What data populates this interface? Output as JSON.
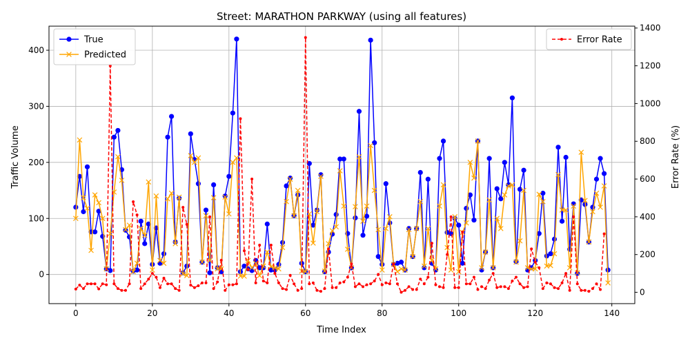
{
  "chart_data": {
    "type": "line",
    "title": "Street: MARATHON PARKWAY (using all features)",
    "xlabel": "Time Index",
    "ylabel": "Traffic Volume",
    "ylabel_right": "Error Rate (%)",
    "xlim": [
      -7,
      146
    ],
    "ylim": [
      -52,
      443
    ],
    "ylim_right": [
      -60,
      1410
    ],
    "x_ticks": [
      0,
      20,
      40,
      60,
      80,
      100,
      120,
      140
    ],
    "y_ticks": [
      0,
      100,
      200,
      300,
      400
    ],
    "y_ticks_right": [
      0,
      200,
      400,
      600,
      800,
      1000,
      1200,
      1400
    ],
    "grid": true,
    "legend_left_position": "top-left",
    "legend_right_position": "top-right",
    "series": [
      {
        "name": "True",
        "axis": "left",
        "color": "#0000ff",
        "marker": "circle",
        "linestyle": "solid",
        "values": [
          120,
          175,
          112,
          192,
          76,
          76,
          113,
          68,
          10,
          7,
          245,
          257,
          187,
          79,
          67,
          6,
          8,
          95,
          55,
          90,
          18,
          83,
          20,
          37,
          245,
          282,
          58,
          136,
          3,
          15,
          251,
          205,
          162,
          22,
          115,
          3,
          160,
          12,
          5,
          140,
          175,
          288,
          420,
          5,
          15,
          10,
          7,
          25,
          12,
          12,
          90,
          8,
          8,
          18,
          57,
          158,
          172,
          105,
          142,
          20,
          5,
          198,
          88,
          115,
          178,
          5,
          40,
          72,
          107,
          206,
          206,
          73,
          12,
          101,
          291,
          70,
          104,
          418,
          235,
          32,
          18,
          162,
          92,
          18,
          20,
          22,
          8,
          82,
          32,
          82,
          182,
          12,
          170,
          20,
          8,
          207,
          238,
          75,
          73,
          100,
          88,
          20,
          118,
          142,
          97,
          238,
          8,
          40,
          207,
          12,
          153,
          135,
          200,
          160,
          315,
          23,
          152,
          186,
          8,
          12,
          25,
          73,
          145,
          33,
          37,
          63,
          227,
          95,
          209,
          45,
          126,
          2,
          133,
          125,
          58,
          120,
          170,
          207,
          180,
          8
        ]
      },
      {
        "name": "Predicted",
        "axis": "left",
        "color": "#ffa500",
        "marker": "x",
        "linestyle": "solid",
        "values": [
          100,
          240,
          137,
          118,
          43,
          142,
          128,
          100,
          10,
          73,
          147,
          210,
          168,
          80,
          88,
          5,
          20,
          82,
          70,
          165,
          8,
          140,
          25,
          20,
          135,
          145,
          55,
          138,
          1,
          -2,
          212,
          200,
          208,
          22,
          105,
          25,
          137,
          10,
          10,
          138,
          108,
          200,
          208,
          -3,
          -3,
          25,
          12,
          20,
          -2,
          15,
          40,
          14,
          12,
          10,
          48,
          130,
          170,
          105,
          150,
          6,
          5,
          108,
          56,
          112,
          175,
          6,
          55,
          78,
          85,
          185,
          122,
          45,
          12,
          121,
          210,
          95,
          122,
          230,
          150,
          80,
          8,
          82,
          103,
          18,
          5,
          10,
          8,
          80,
          32,
          82,
          130,
          15,
          82,
          25,
          10,
          122,
          160,
          48,
          8,
          103,
          5,
          75,
          92,
          200,
          172,
          238,
          12,
          40,
          133,
          12,
          100,
          82,
          142,
          158,
          160,
          22,
          60,
          150,
          12,
          10,
          10,
          143,
          130,
          15,
          16,
          37,
          178,
          115,
          115,
          12,
          122,
          3,
          218,
          132,
          58,
          112,
          145,
          120,
          158,
          -15
        ]
      },
      {
        "name": "Error Rate",
        "axis": "right",
        "color": "#ff0000",
        "marker": "dot",
        "linestyle": "dashed",
        "values": [
          17,
          38,
          20,
          45,
          45,
          45,
          18,
          45,
          40,
          1200,
          45,
          20,
          10,
          10,
          45,
          480,
          410,
          20,
          45,
          70,
          100,
          80,
          25,
          75,
          45,
          45,
          20,
          10,
          450,
          360,
          38,
          25,
          35,
          50,
          50,
          400,
          20,
          55,
          170,
          10,
          40,
          40,
          45,
          920,
          220,
          120,
          600,
          50,
          250,
          60,
          50,
          250,
          100,
          50,
          20,
          15,
          90,
          45,
          10,
          20,
          1350,
          45,
          50,
          10,
          5,
          20,
          230,
          25,
          25,
          50,
          55,
          80,
          150,
          30,
          45,
          30,
          40,
          45,
          60,
          95,
          40,
          50,
          45,
          150,
          45,
          0,
          10,
          30,
          15,
          15,
          70,
          45,
          80,
          260,
          40,
          30,
          25,
          200,
          400,
          25,
          25,
          320,
          45,
          45,
          80,
          15,
          30,
          20,
          65,
          100,
          25,
          30,
          30,
          20,
          60,
          80,
          45,
          25,
          30,
          230,
          160,
          130,
          20,
          50,
          45,
          25,
          20,
          50,
          100,
          10,
          400,
          45,
          10,
          10,
          5,
          20,
          45,
          15,
          310
        ]
      }
    ]
  }
}
